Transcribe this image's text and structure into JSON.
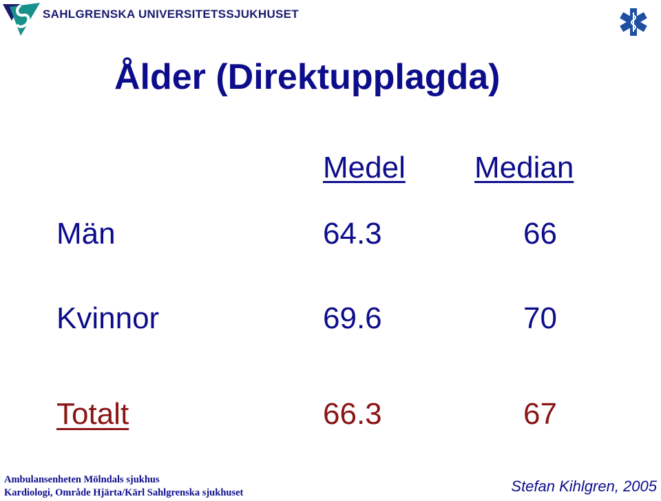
{
  "header": {
    "org_name": "SAHLGRENSKA UNIVERSITETSSJUKHUSET",
    "logo_icon": "sahlgrenska-logo-icon",
    "emergency_icon": "star-of-life-icon"
  },
  "title": "Ålder (Direktupplagda)",
  "table": {
    "columns": [
      "Medel",
      "Median"
    ],
    "rows": [
      {
        "label": "Män",
        "medel": "64.3",
        "median": "66"
      },
      {
        "label": "Kvinnor",
        "medel": "69.6",
        "median": "70"
      },
      {
        "label": "Totalt",
        "medel": "66.3",
        "median": "67"
      }
    ]
  },
  "footer": {
    "line1": "Ambulansenheten Mölndals sjukhus",
    "line2": "Kardiologi, Område Hjärta/Kärl Sahlgrenska sjukhuset",
    "author": "Stefan Kihlgren, 2005"
  },
  "colors": {
    "text": "#0d0d8c",
    "total": "#8b1414",
    "logo_teal": "#17918a",
    "logo_navy": "#1a1a6e"
  }
}
